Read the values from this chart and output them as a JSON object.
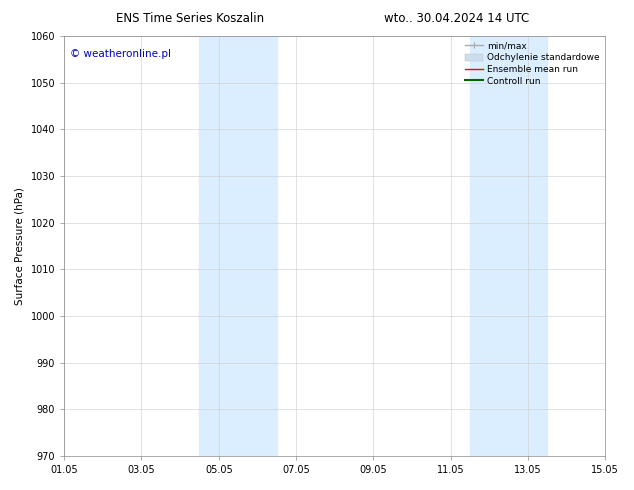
{
  "title_left": "ENS Time Series Koszalin",
  "title_right": "wto.. 30.04.2024 14 UTC",
  "ylabel": "Surface Pressure (hPa)",
  "ylim": [
    970,
    1060
  ],
  "yticks": [
    970,
    980,
    990,
    1000,
    1010,
    1020,
    1030,
    1040,
    1050,
    1060
  ],
  "xtick_labels": [
    "01.05",
    "03.05",
    "05.05",
    "07.05",
    "09.05",
    "11.05",
    "13.05",
    "15.05"
  ],
  "xtick_positions": [
    0,
    2,
    4,
    6,
    8,
    10,
    12,
    14
  ],
  "x_start": 0,
  "x_end": 14,
  "shaded_bands": [
    {
      "x_start": 3.5,
      "x_end": 5.5,
      "color": "#daeeff"
    },
    {
      "x_start": 10.5,
      "x_end": 12.5,
      "color": "#daeeff"
    }
  ],
  "watermark_text": "© weatheronline.pl",
  "watermark_color": "#0000cc",
  "legend_items": [
    {
      "label": "min/max",
      "color": "#aaaaaa",
      "lw": 1.0
    },
    {
      "label": "Odchylenie standardowe",
      "color": "#ccddee",
      "lw": 6
    },
    {
      "label": "Ensemble mean run",
      "color": "#ff0000",
      "lw": 1.0
    },
    {
      "label": "Controll run",
      "color": "#006600",
      "lw": 1.5
    }
  ],
  "bg_color": "#ffffff",
  "grid_color": "#cccccc",
  "font_size_title": 8.5,
  "font_size_labels": 7.5,
  "font_size_ticks": 7.0,
  "font_size_legend": 6.5,
  "font_size_watermark": 7.5
}
